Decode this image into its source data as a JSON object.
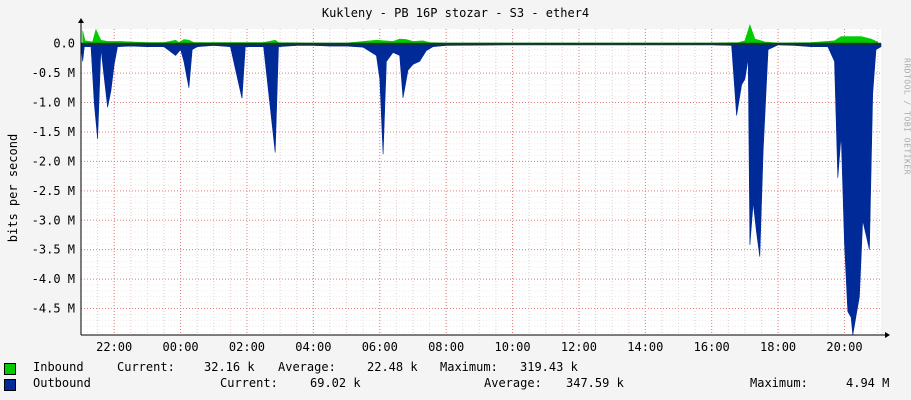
{
  "chart_data": {
    "type": "area",
    "title": "Kukleny - PB 16P stozar - S3 - ether4",
    "ylabel": "bits per second",
    "vendor": "RRDTOOL / TOBI OETIKER",
    "y_ticks": [
      {
        "value": 0,
        "label": "0.0"
      },
      {
        "value": -0.5,
        "label": "-0.5 M"
      },
      {
        "value": -1.0,
        "label": "-1.0 M"
      },
      {
        "value": -1.5,
        "label": "-1.5 M"
      },
      {
        "value": -2.0,
        "label": "-2.0 M"
      },
      {
        "value": -2.5,
        "label": "-2.5 M"
      },
      {
        "value": -3.0,
        "label": "-3.0 M"
      },
      {
        "value": -3.5,
        "label": "-3.5 M"
      },
      {
        "value": -4.0,
        "label": "-4.0 M"
      },
      {
        "value": -4.5,
        "label": "-4.5 M"
      }
    ],
    "ylim": [
      -4.95,
      0.25
    ],
    "x_range_hours": [
      21.0,
      45.1
    ],
    "x_ticks": [
      {
        "value": 22,
        "label": "22:00"
      },
      {
        "value": 24,
        "label": "00:00"
      },
      {
        "value": 26,
        "label": "02:00"
      },
      {
        "value": 28,
        "label": "04:00"
      },
      {
        "value": 30,
        "label": "06:00"
      },
      {
        "value": 32,
        "label": "08:00"
      },
      {
        "value": 34,
        "label": "10:00"
      },
      {
        "value": 36,
        "label": "12:00"
      },
      {
        "value": 38,
        "label": "14:00"
      },
      {
        "value": 40,
        "label": "16:00"
      },
      {
        "value": 42,
        "label": "18:00"
      },
      {
        "value": 44,
        "label": "20:00"
      }
    ],
    "series": [
      {
        "name": "Inbound",
        "color": "#00cc00",
        "points": [
          [
            21.05,
            0.22
          ],
          [
            21.12,
            0.05
          ],
          [
            21.35,
            0.03
          ],
          [
            21.45,
            0.24
          ],
          [
            21.6,
            0.06
          ],
          [
            21.8,
            0.04
          ],
          [
            22.2,
            0.04
          ],
          [
            22.5,
            0.03
          ],
          [
            23.0,
            0.02
          ],
          [
            23.5,
            0.02
          ],
          [
            23.85,
            0.06
          ],
          [
            23.95,
            0.02
          ],
          [
            24.1,
            0.07
          ],
          [
            24.25,
            0.06
          ],
          [
            24.4,
            0.02
          ],
          [
            25.0,
            0.02
          ],
          [
            26.0,
            0.02
          ],
          [
            26.5,
            0.02
          ],
          [
            26.85,
            0.06
          ],
          [
            26.95,
            0.02
          ],
          [
            28.0,
            0.01
          ],
          [
            29.0,
            0.01
          ],
          [
            29.9,
            0.06
          ],
          [
            30.4,
            0.04
          ],
          [
            30.6,
            0.08
          ],
          [
            30.8,
            0.07
          ],
          [
            31.0,
            0.04
          ],
          [
            31.3,
            0.05
          ],
          [
            31.5,
            0.02
          ],
          [
            32.0,
            0.01
          ],
          [
            34.0,
            0.01
          ],
          [
            36.0,
            0.01
          ],
          [
            38.0,
            0.01
          ],
          [
            39.0,
            0.01
          ],
          [
            40.0,
            0.01
          ],
          [
            40.8,
            0.02
          ],
          [
            41.0,
            0.05
          ],
          [
            41.15,
            0.32
          ],
          [
            41.3,
            0.08
          ],
          [
            41.6,
            0.03
          ],
          [
            42.0,
            0.01
          ],
          [
            43.0,
            0.02
          ],
          [
            43.7,
            0.05
          ],
          [
            43.9,
            0.12
          ],
          [
            44.5,
            0.12
          ],
          [
            44.8,
            0.08
          ],
          [
            45.0,
            0.03
          ]
        ]
      },
      {
        "name": "Outbound",
        "color": "#002a97",
        "points": [
          [
            21.0,
            -0.02
          ],
          [
            21.05,
            -0.3
          ],
          [
            21.1,
            -0.05
          ],
          [
            21.3,
            -0.05
          ],
          [
            21.4,
            -1.02
          ],
          [
            21.5,
            -1.62
          ],
          [
            21.6,
            -0.08
          ],
          [
            21.8,
            -1.08
          ],
          [
            21.9,
            -0.8
          ],
          [
            22.0,
            -0.35
          ],
          [
            22.1,
            -0.05
          ],
          [
            22.5,
            -0.04
          ],
          [
            23.0,
            -0.05
          ],
          [
            23.5,
            -0.05
          ],
          [
            23.85,
            -0.2
          ],
          [
            24.0,
            -0.1
          ],
          [
            24.1,
            -0.3
          ],
          [
            24.25,
            -0.75
          ],
          [
            24.35,
            -0.1
          ],
          [
            24.5,
            -0.05
          ],
          [
            25.0,
            -0.03
          ],
          [
            25.5,
            -0.05
          ],
          [
            25.85,
            -0.93
          ],
          [
            25.95,
            -0.05
          ],
          [
            26.5,
            -0.05
          ],
          [
            26.85,
            -1.85
          ],
          [
            26.95,
            -0.05
          ],
          [
            27.5,
            -0.03
          ],
          [
            28.0,
            -0.03
          ],
          [
            28.5,
            -0.04
          ],
          [
            29.0,
            -0.04
          ],
          [
            29.5,
            -0.06
          ],
          [
            29.9,
            -0.2
          ],
          [
            30.0,
            -0.6
          ],
          [
            30.1,
            -1.88
          ],
          [
            30.2,
            -0.3
          ],
          [
            30.4,
            -0.15
          ],
          [
            30.6,
            -0.2
          ],
          [
            30.7,
            -0.92
          ],
          [
            30.85,
            -0.45
          ],
          [
            31.0,
            -0.35
          ],
          [
            31.2,
            -0.3
          ],
          [
            31.4,
            -0.12
          ],
          [
            31.6,
            -0.05
          ],
          [
            32.0,
            -0.03
          ],
          [
            34.0,
            -0.02
          ],
          [
            36.0,
            -0.02
          ],
          [
            38.0,
            -0.02
          ],
          [
            39.0,
            -0.02
          ],
          [
            40.0,
            -0.02
          ],
          [
            40.6,
            -0.03
          ],
          [
            40.75,
            -1.22
          ],
          [
            40.9,
            -0.7
          ],
          [
            41.0,
            -0.6
          ],
          [
            41.1,
            -0.25
          ],
          [
            41.15,
            -3.42
          ],
          [
            41.25,
            -2.7
          ],
          [
            41.35,
            -3.2
          ],
          [
            41.45,
            -3.62
          ],
          [
            41.55,
            -1.8
          ],
          [
            41.7,
            -0.1
          ],
          [
            42.0,
            -0.02
          ],
          [
            42.5,
            -0.03
          ],
          [
            43.0,
            -0.05
          ],
          [
            43.5,
            -0.05
          ],
          [
            43.7,
            -0.3
          ],
          [
            43.8,
            -2.28
          ],
          [
            43.9,
            -1.55
          ],
          [
            44.0,
            -3.4
          ],
          [
            44.1,
            -4.55
          ],
          [
            44.2,
            -4.65
          ],
          [
            44.25,
            -4.95
          ],
          [
            44.35,
            -4.62
          ],
          [
            44.45,
            -4.3
          ],
          [
            44.55,
            -3.0
          ],
          [
            44.65,
            -3.25
          ],
          [
            44.75,
            -3.5
          ],
          [
            44.85,
            -0.85
          ],
          [
            44.95,
            -0.1
          ],
          [
            45.1,
            -0.05
          ]
        ]
      }
    ]
  },
  "legend": {
    "inbound": {
      "name": "Inbound",
      "current_label": "Current:",
      "current": "32.16 k",
      "average_label": "Average:",
      "average": "22.48 k",
      "maximum_label": "Maximum:",
      "maximum": "319.43 k"
    },
    "outbound": {
      "name": "Outbound",
      "current_label": "Current:",
      "current": "69.02 k",
      "average_label": "Average:",
      "average": "347.59 k",
      "maximum_label": "Maximum:",
      "maximum": "4.94 M"
    }
  }
}
